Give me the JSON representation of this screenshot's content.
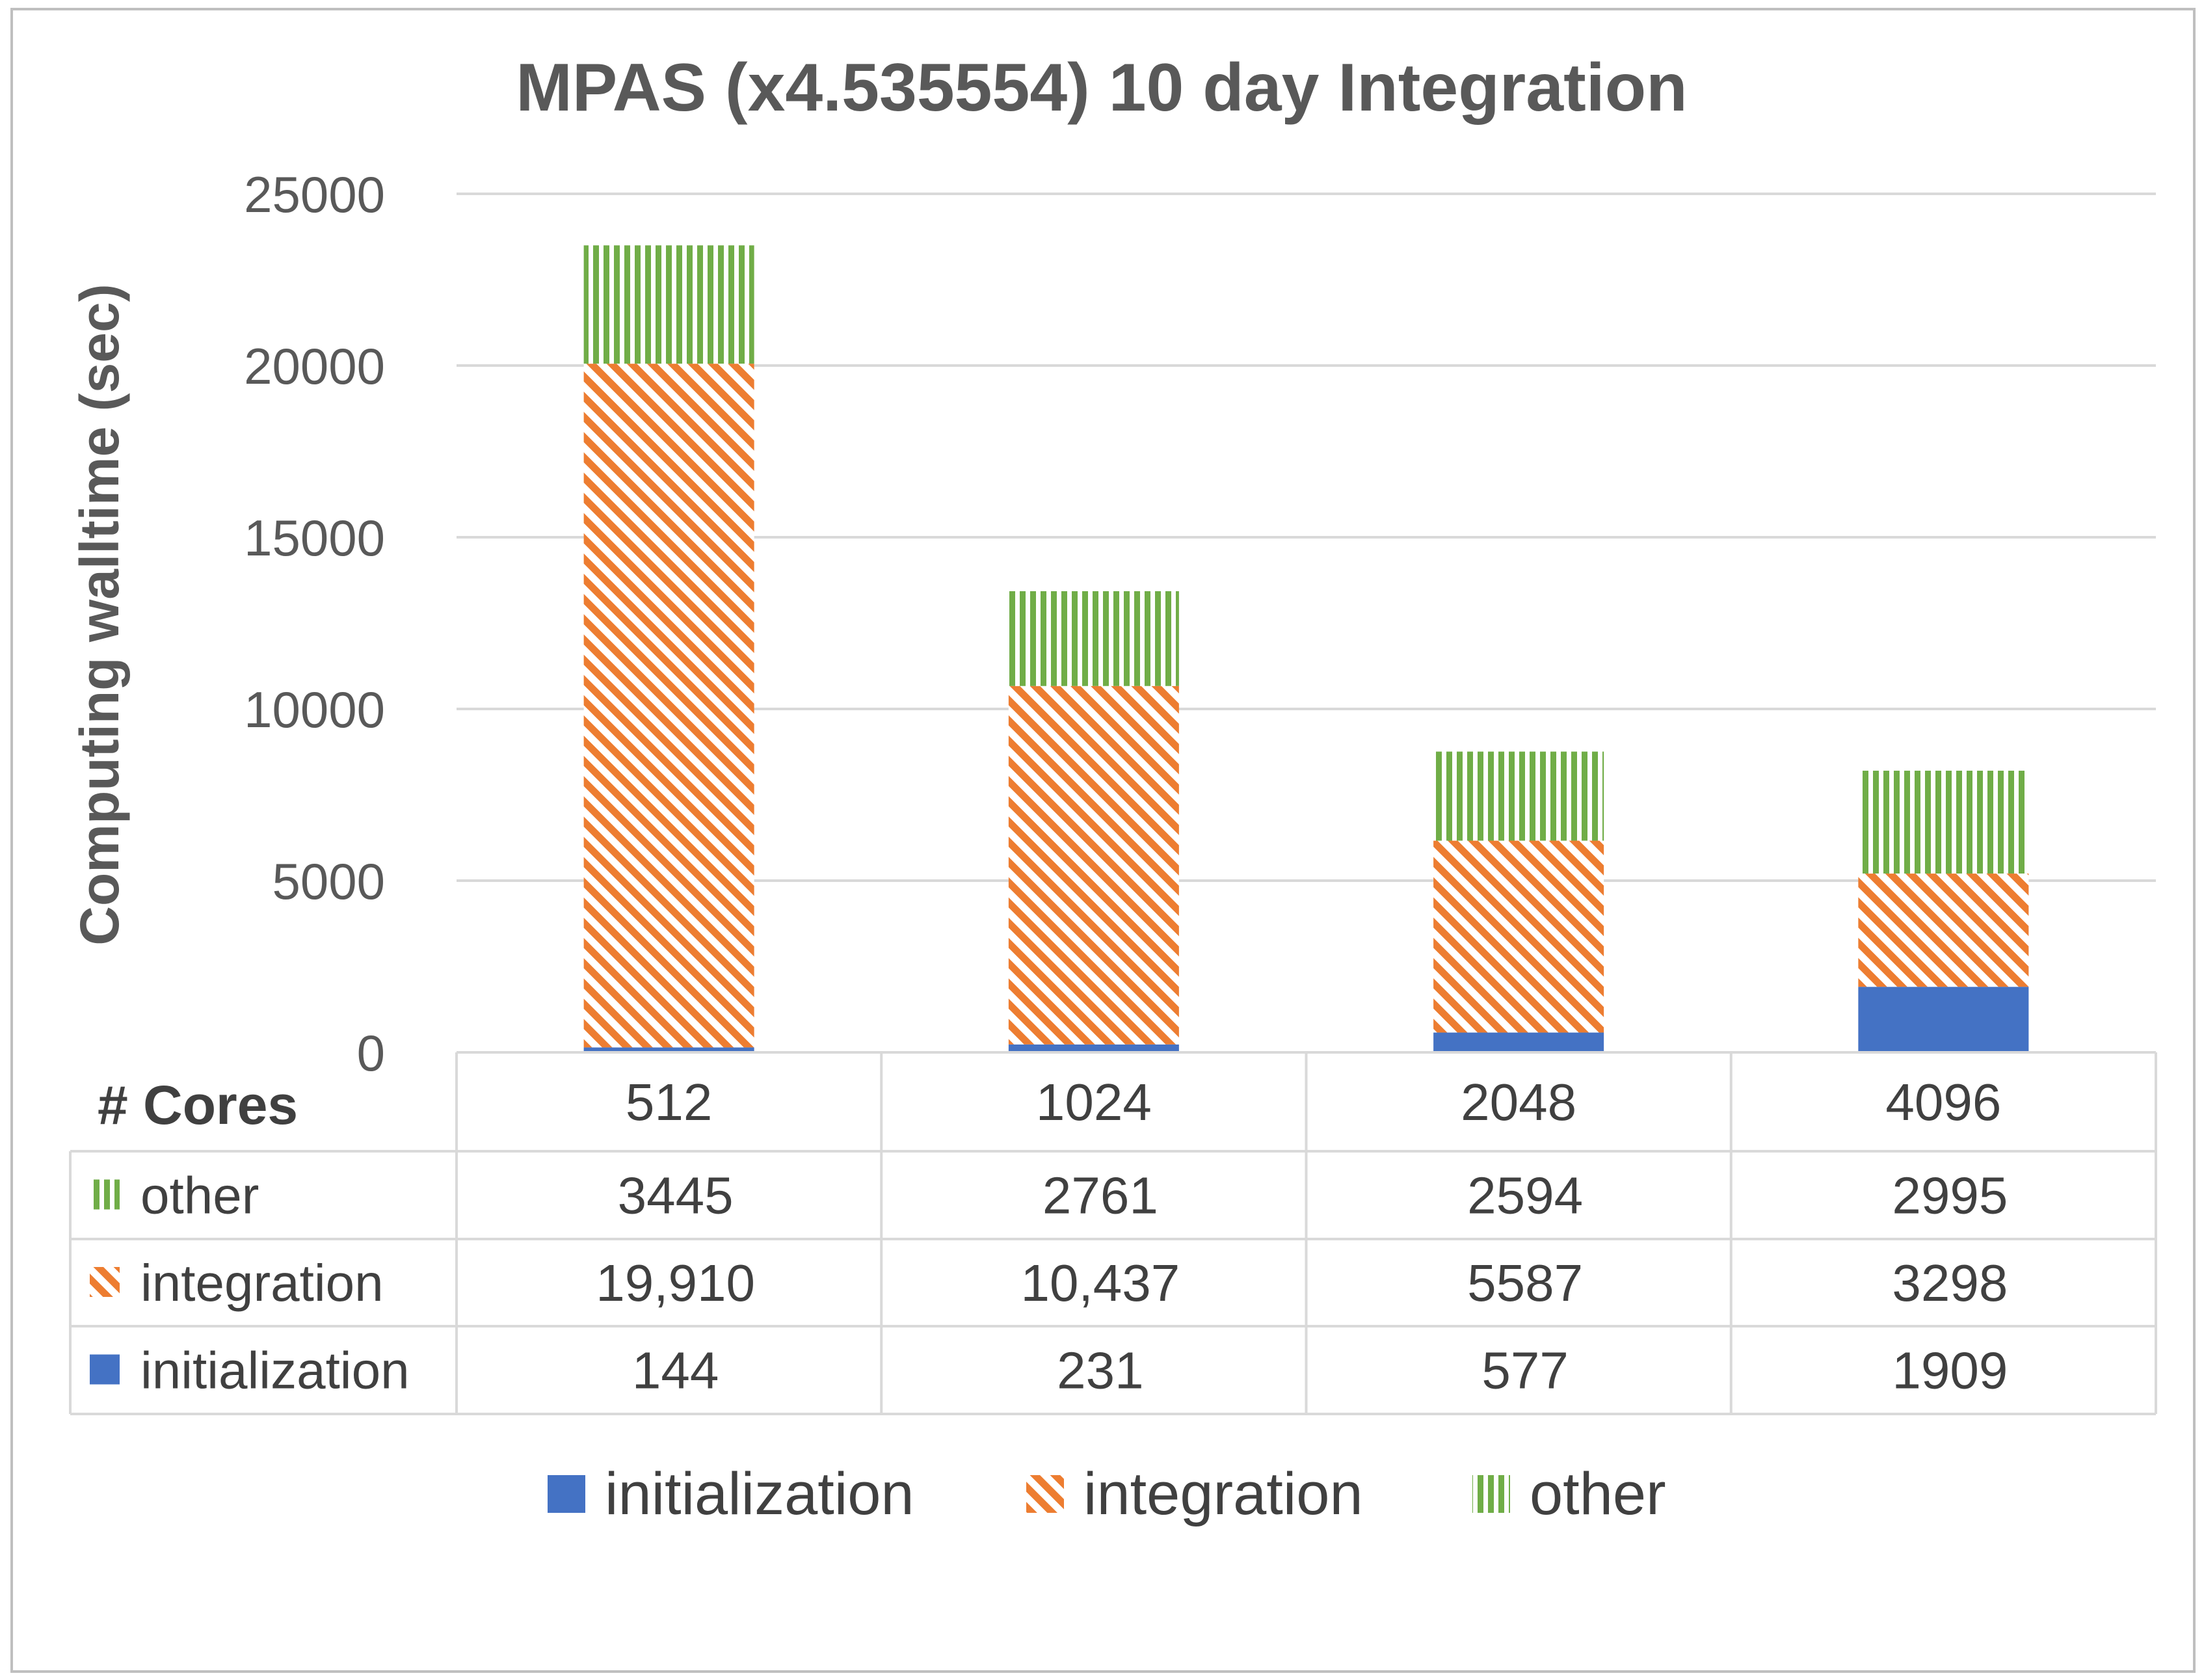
{
  "chart_data": {
    "type": "bar",
    "stacked": true,
    "title": "MPAS (x4.535554) 10 day Integration",
    "ylabel": "Computing walltime (sec)",
    "xlabel": "# Cores",
    "ylim": [
      0,
      25000
    ],
    "yticks": [
      "0",
      "5000",
      "10000",
      "15000",
      "20000",
      "25000"
    ],
    "categories": [
      "512",
      "1024",
      "2048",
      "4096"
    ],
    "series": [
      {
        "name": "initialization",
        "values": [
          144,
          231,
          577,
          1909
        ],
        "labels": [
          "144",
          "231",
          "577",
          "1909"
        ],
        "color": "#4472c4",
        "pattern": "solid"
      },
      {
        "name": "integration",
        "values": [
          19910,
          10437,
          5587,
          3298
        ],
        "labels": [
          "19,910",
          "10,437",
          "5587",
          "3298"
        ],
        "color": "#ed7d31",
        "pattern": "diagonal"
      },
      {
        "name": "other",
        "values": [
          3445,
          2761,
          2594,
          2995
        ],
        "labels": [
          "3445",
          "2761",
          "2594",
          "2995"
        ],
        "color": "#70ad47",
        "pattern": "vertical"
      }
    ],
    "table_row_order": [
      "other",
      "integration",
      "initialization"
    ],
    "legend_position": "bottom",
    "data_table": true,
    "grid": true
  }
}
